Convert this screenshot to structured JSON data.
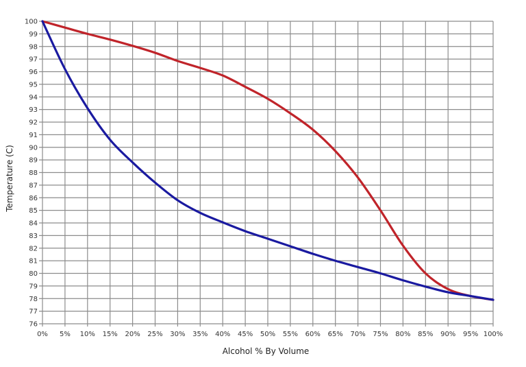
{
  "chart_data": {
    "type": "line",
    "title": "",
    "xlabel": "Alcohol % By Volume",
    "ylabel": "Temperature (C)",
    "xlim": [
      0,
      100
    ],
    "ylim": [
      76,
      100
    ],
    "grid": true,
    "legend": null,
    "x": [
      0,
      5,
      10,
      15,
      20,
      25,
      30,
      35,
      40,
      45,
      50,
      55,
      60,
      65,
      70,
      75,
      80,
      85,
      90,
      95,
      100
    ],
    "x_tick_labels": [
      "0%",
      "5%",
      "10%",
      "15%",
      "20%",
      "25%",
      "30%",
      "35%",
      "40%",
      "45%",
      "50%",
      "55%",
      "60%",
      "65%",
      "70%",
      "75%",
      "80%",
      "85%",
      "90%",
      "95%",
      "100%"
    ],
    "y_ticks": [
      76,
      77,
      78,
      79,
      80,
      81,
      82,
      83,
      84,
      85,
      86,
      87,
      88,
      89,
      90,
      91,
      92,
      93,
      94,
      95,
      96,
      97,
      98,
      99,
      100
    ],
    "series": [
      {
        "name": "red-curve",
        "color": "#c0242a",
        "values": [
          100,
          99.5,
          99.0,
          98.55,
          98.05,
          97.5,
          96.85,
          96.3,
          95.7,
          94.8,
          93.85,
          92.7,
          91.4,
          89.7,
          87.6,
          85.0,
          82.2,
          80.0,
          78.75,
          78.2,
          77.9
        ]
      },
      {
        "name": "blue-curve",
        "color": "#1a1aa0",
        "values": [
          100,
          96.2,
          93.1,
          90.6,
          88.8,
          87.2,
          85.8,
          84.8,
          84.05,
          83.35,
          82.75,
          82.15,
          81.55,
          81.0,
          80.5,
          80.0,
          79.45,
          78.95,
          78.5,
          78.2,
          77.9
        ]
      }
    ]
  },
  "axes": {
    "x_title": "Alcohol % By Volume",
    "y_title": "Temperature (C)"
  },
  "colors": {
    "grid": "#8c8c8c",
    "background": "#ffffff"
  }
}
